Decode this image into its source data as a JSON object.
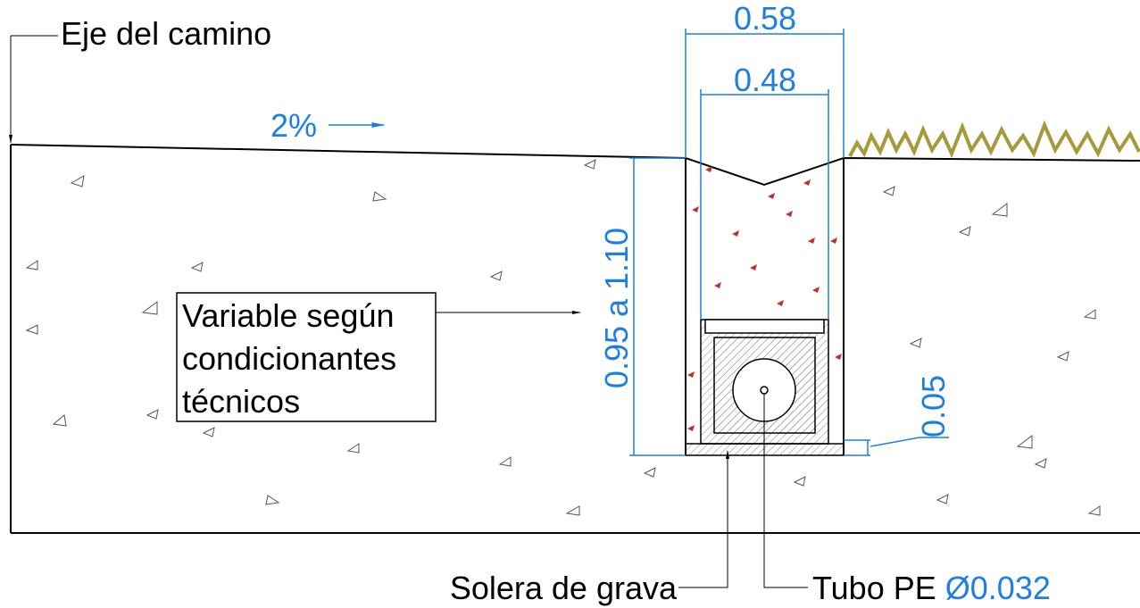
{
  "labels": {
    "axis": "Eje del camino",
    "slope": "2%",
    "outer_width": "0.58",
    "inner_width": "0.48",
    "depth": "0.95 a 1.10",
    "variable_note": [
      "Variable según",
      "condicionantes",
      "técnicos"
    ],
    "base_thickness": "0.05",
    "base_label": "Solera de grava",
    "pipe_label": "Tubo PE",
    "pipe_diameter": "Ø0.032"
  }
}
